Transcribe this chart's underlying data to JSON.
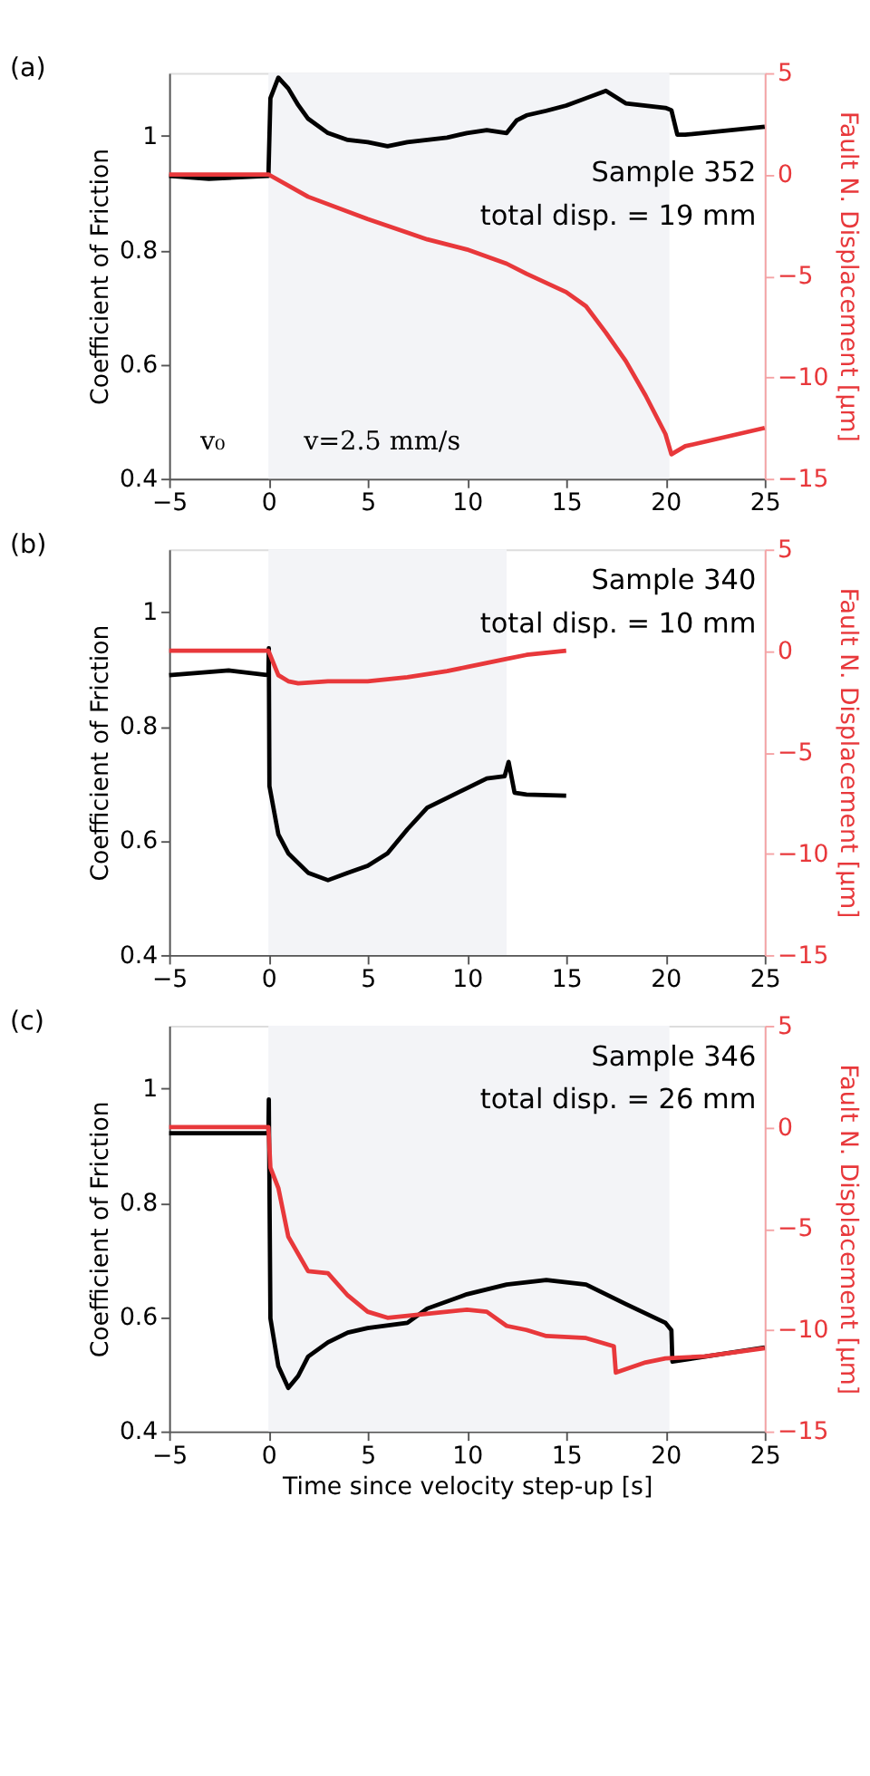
{
  "chart_data": [
    {
      "type": "line",
      "title": "(a)",
      "ylabel": "Coefficient of Friction",
      "y2label": "Fault N. Displacement [μm]",
      "xlim": [
        -5,
        25
      ],
      "xticks": [
        -5,
        0,
        5,
        10,
        15,
        20,
        25
      ],
      "ylim": [
        0.4,
        1.11
      ],
      "yticks": [
        0.4,
        0.6,
        0.8,
        1
      ],
      "y2lim": [
        -15,
        5
      ],
      "y2ticks": [
        -15,
        -10,
        -5,
        0,
        5
      ],
      "grid": false,
      "bands": [
        {
          "axis": "x",
          "from": 0,
          "to": 20.2,
          "color": "#f3f4f7"
        }
      ],
      "annotations": [
        "Sample 352",
        "total disp. = 19 mm",
        "v₀",
        "v=2.5 mm/s"
      ],
      "series": [
        {
          "color": "#000000",
          "x": [
            -5,
            -3,
            0,
            0.1,
            0.5,
            1,
            1.5,
            2,
            3,
            4,
            5,
            6,
            7,
            8,
            9,
            10,
            11,
            12,
            12.5,
            13,
            14,
            15,
            16,
            17,
            18,
            19,
            20,
            20.3,
            20.6,
            21,
            25
          ],
          "values": [
            0.93,
            0.925,
            0.93,
            1.066,
            1.102,
            1.083,
            1.054,
            1.03,
            1.005,
            0.993,
            0.989,
            0.982,
            0.989,
            0.993,
            0.997,
            1.005,
            1.01,
            1.005,
            1.027,
            1.036,
            1.044,
            1.053,
            1.066,
            1.079,
            1.057,
            1.053,
            1.049,
            1.045,
            1.002,
            1.002,
            1.016
          ]
        },
        {
          "color": "#e8383b",
          "axis": "y2",
          "x": [
            -5,
            0,
            2,
            5,
            8,
            10,
            12,
            13,
            15,
            16,
            17,
            18,
            19,
            20,
            20.3,
            21,
            25
          ],
          "values": [
            0,
            0,
            -1.1,
            -2.2,
            -3.2,
            -3.7,
            -4.4,
            -4.9,
            -5.8,
            -6.5,
            -7.8,
            -9.2,
            -10.9,
            -12.8,
            -13.8,
            -13.4,
            -12.5
          ]
        }
      ]
    },
    {
      "type": "line",
      "title": "(b)",
      "ylabel": "Coefficient of Friction",
      "y2label": "Fault N. Displacement [μm]",
      "xlim": [
        -5,
        25
      ],
      "xticks": [
        -5,
        0,
        5,
        10,
        15,
        20,
        25
      ],
      "ylim": [
        0.4,
        1.11
      ],
      "yticks": [
        0.4,
        0.6,
        0.8,
        1
      ],
      "y2lim": [
        -15,
        5
      ],
      "y2ticks": [
        -15,
        -10,
        -5,
        0,
        5
      ],
      "grid": false,
      "bands": [
        {
          "axis": "x",
          "from": 0,
          "to": 12,
          "color": "#f3f4f7"
        }
      ],
      "annotations": [
        "Sample 340",
        "total disp. = 10 mm"
      ],
      "series": [
        {
          "color": "#000000",
          "x": [
            -5,
            -2,
            0,
            0.02,
            0.05,
            0.5,
            1,
            2,
            3,
            4,
            5,
            6,
            7,
            8,
            9,
            10,
            11,
            11.9,
            12.1,
            12.4,
            13,
            15
          ],
          "values": [
            0.89,
            0.898,
            0.89,
            0.937,
            0.696,
            0.611,
            0.578,
            0.544,
            0.531,
            0.544,
            0.556,
            0.578,
            0.62,
            0.658,
            0.675,
            0.692,
            0.709,
            0.713,
            0.738,
            0.684,
            0.681,
            0.679
          ]
        },
        {
          "color": "#e8383b",
          "axis": "y2",
          "x": [
            -5,
            0,
            0.5,
            1,
            1.5,
            3,
            5,
            7,
            9,
            10,
            11,
            12,
            13,
            15
          ],
          "values": [
            0,
            0,
            -1.2,
            -1.5,
            -1.6,
            -1.5,
            -1.5,
            -1.3,
            -1.0,
            -0.8,
            -0.6,
            -0.4,
            -0.2,
            0
          ]
        }
      ]
    },
    {
      "type": "line",
      "title": "(c)",
      "xlabel": "Time since velocity step-up [s]",
      "ylabel": "Coefficient of Friction",
      "y2label": "Fault N. Displacement [μm]",
      "xlim": [
        -5,
        25
      ],
      "xticks": [
        -5,
        0,
        5,
        10,
        15,
        20,
        25
      ],
      "ylim": [
        0.4,
        1.11
      ],
      "yticks": [
        0.4,
        0.6,
        0.8,
        1
      ],
      "y2lim": [
        -15,
        5
      ],
      "y2ticks": [
        -15,
        -10,
        -5,
        0,
        5
      ],
      "grid": false,
      "bands": [
        {
          "axis": "x",
          "from": 0,
          "to": 20.2,
          "color": "#f3f4f7"
        }
      ],
      "annotations": [
        "Sample 346",
        "total disp. = 26 mm"
      ],
      "series": [
        {
          "color": "#000000",
          "x": [
            -5,
            0,
            0.02,
            0.1,
            0.5,
            1,
            1.5,
            2,
            3,
            4,
            5,
            7,
            8,
            10,
            12,
            14,
            16,
            18,
            20,
            20.3,
            20.35,
            22,
            25
          ],
          "values": [
            0.922,
            0.922,
            0.981,
            0.598,
            0.514,
            0.476,
            0.497,
            0.531,
            0.556,
            0.573,
            0.581,
            0.59,
            0.615,
            0.64,
            0.657,
            0.665,
            0.657,
            0.623,
            0.59,
            0.577,
            0.522,
            0.531,
            0.547
          ]
        },
        {
          "color": "#e8383b",
          "axis": "y2",
          "x": [
            -5,
            0,
            0.1,
            0.5,
            1,
            2,
            3,
            4,
            5,
            6,
            8,
            10,
            11,
            12,
            13,
            14,
            16,
            17.4,
            17.5,
            19,
            20,
            22,
            25
          ],
          "values": [
            0,
            0,
            -2.0,
            -3.0,
            -5.4,
            -7.1,
            -7.2,
            -8.3,
            -9.1,
            -9.4,
            -9.2,
            -9.0,
            -9.1,
            -9.8,
            -10.0,
            -10.3,
            -10.4,
            -10.8,
            -12.1,
            -11.6,
            -11.4,
            -11.3,
            -10.9
          ]
        }
      ]
    }
  ]
}
